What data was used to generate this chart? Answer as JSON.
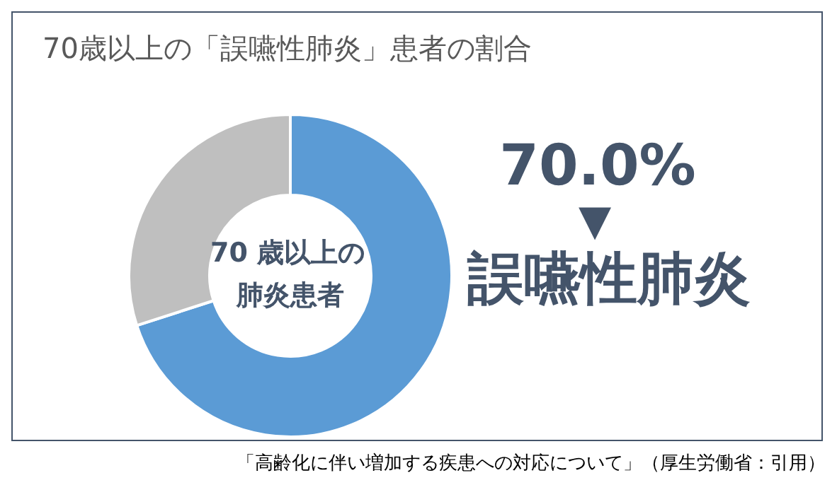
{
  "chart_data": {
    "type": "donut",
    "title": "70歳以上の「誤嚥性肺炎」患者の割合",
    "categories": [
      "誤嚥性肺炎",
      null
    ],
    "values": [
      70,
      30
    ],
    "colors": [
      "#5b9bd5",
      "#bfbfbf"
    ],
    "value_labels": [
      "70.0%",
      null
    ],
    "legend": false,
    "annotations": [
      "70 歳以上の",
      "肺炎患者",
      "▼",
      "「高齢化に伴い増加する疾患への対応について」（厚生労働省：引用）"
    ]
  }
}
